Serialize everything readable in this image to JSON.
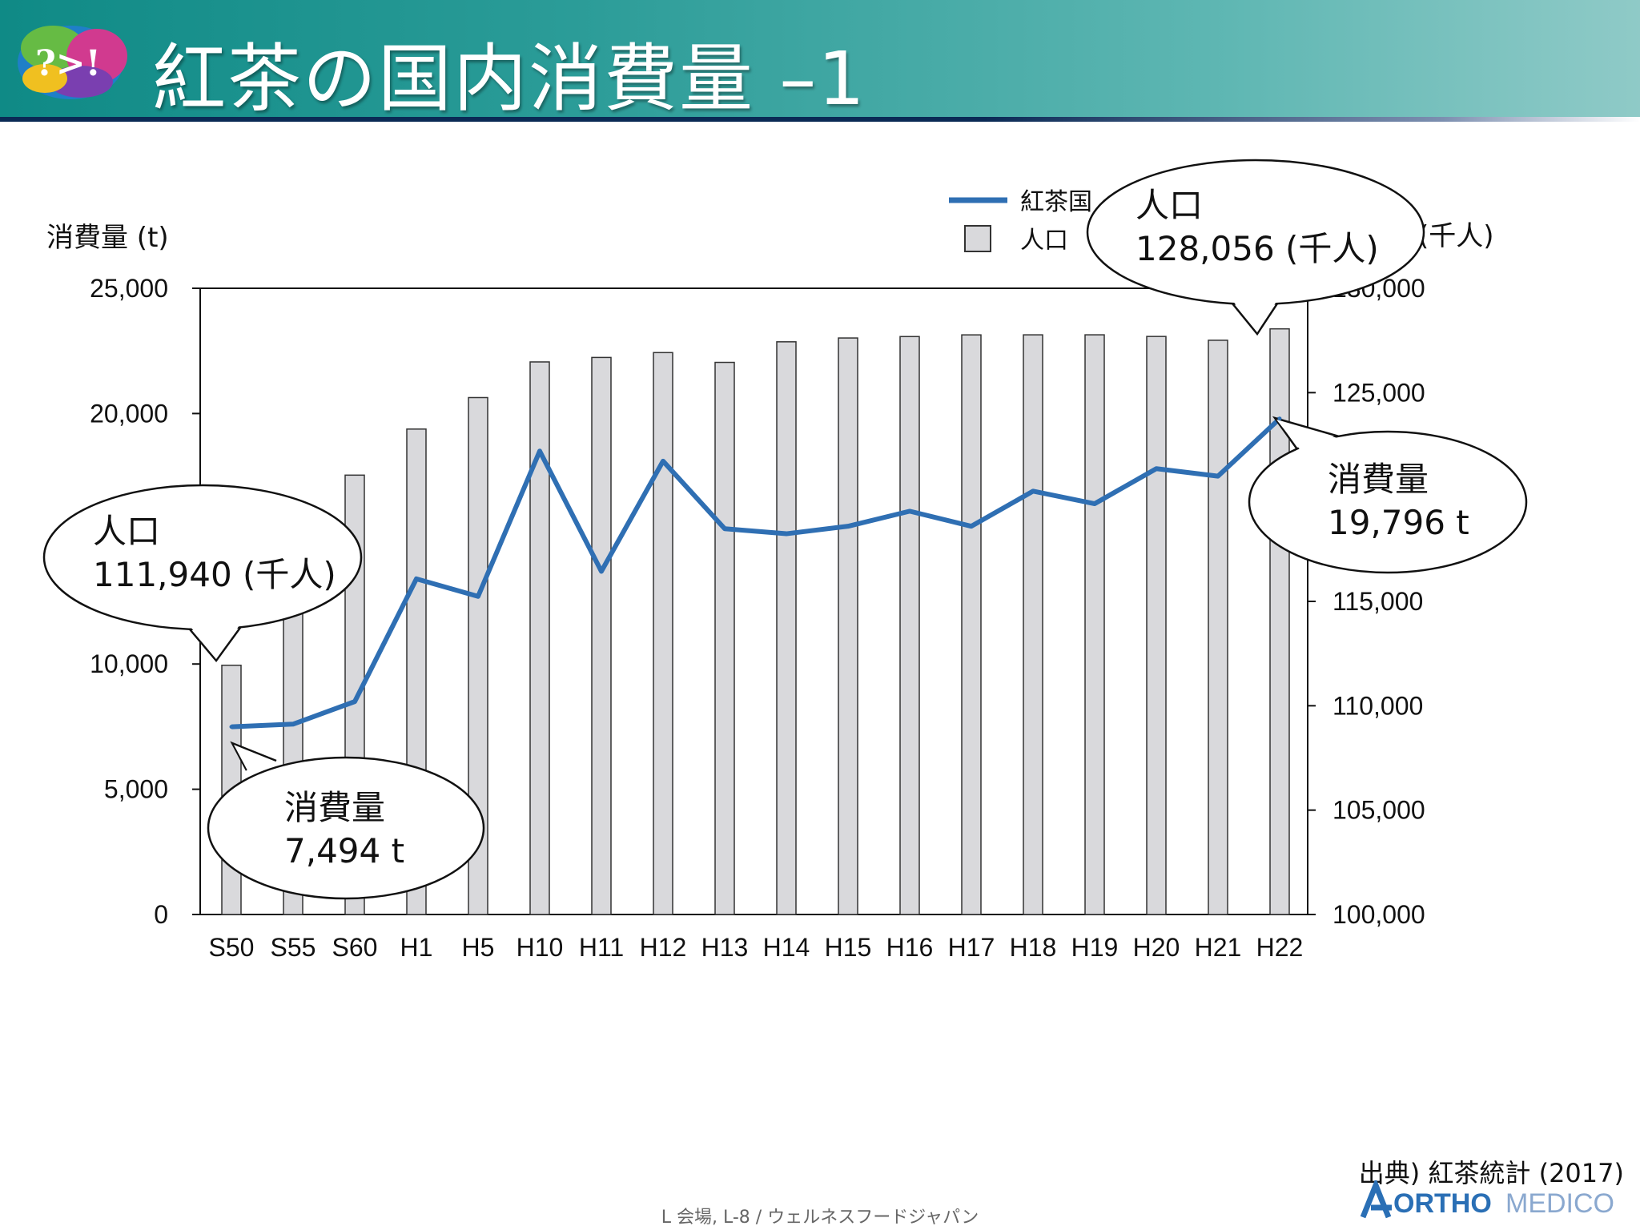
{
  "slide": {
    "title": "紅茶の国内消費量 –1",
    "source": "出典) 紅茶統計 (2017)",
    "footer": "L 会場, L-8 / ウェルネスフードジャパン",
    "brand": {
      "bold": "ORTHO",
      "light": "MEDICO",
      "color": "#2a6fb5"
    },
    "logo_text": "?>!"
  },
  "colors": {
    "line": "#2f6fb3",
    "bar_fill": "#d9d9dc",
    "bar_stroke": "#333333"
  },
  "chart_data": {
    "type": "bar",
    "categories": [
      "S50",
      "S55",
      "S60",
      "H1",
      "H5",
      "H10",
      "H11",
      "H12",
      "H13",
      "H14",
      "H15",
      "H16",
      "H17",
      "H18",
      "H19",
      "H20",
      "H21",
      "H22"
    ],
    "series": [
      {
        "name": "紅茶国",
        "type": "line",
        "axis": "left",
        "values": [
          7494,
          7600,
          8500,
          13400,
          12700,
          18500,
          13700,
          18100,
          15400,
          15200,
          15500,
          16100,
          15500,
          16900,
          16400,
          17800,
          17500,
          19796
        ]
      },
      {
        "name": "人口",
        "type": "bar",
        "axis": "right",
        "values": [
          111940,
          117060,
          121049,
          123255,
          124764,
          126472,
          126686,
          126919,
          126450,
          127436,
          127619,
          127687,
          127768,
          127770,
          127771,
          127692,
          127510,
          128056
        ]
      }
    ],
    "y_left": {
      "label": "消費量 (t)",
      "lim": [
        0,
        25000
      ],
      "ticks": [
        "0",
        "5,000",
        "10,000",
        "15,000",
        "20,000",
        "25,000"
      ]
    },
    "y_right": {
      "label": "(千人)",
      "lim": [
        100000,
        130000
      ],
      "ticks": [
        "100,000",
        "105,000",
        "110,000",
        "115,000",
        "120,000",
        "125,000",
        "130,000"
      ]
    },
    "grid": false,
    "legend_position": "top-right",
    "callouts": [
      {
        "line1": "人口",
        "line2": "111,940 (千人)"
      },
      {
        "line1": "消費量",
        "line2": "7,494 t"
      },
      {
        "line1": "人口",
        "line2": "128,056 (千人)"
      },
      {
        "line1": "消費量",
        "line2": "19,796 t"
      }
    ]
  }
}
